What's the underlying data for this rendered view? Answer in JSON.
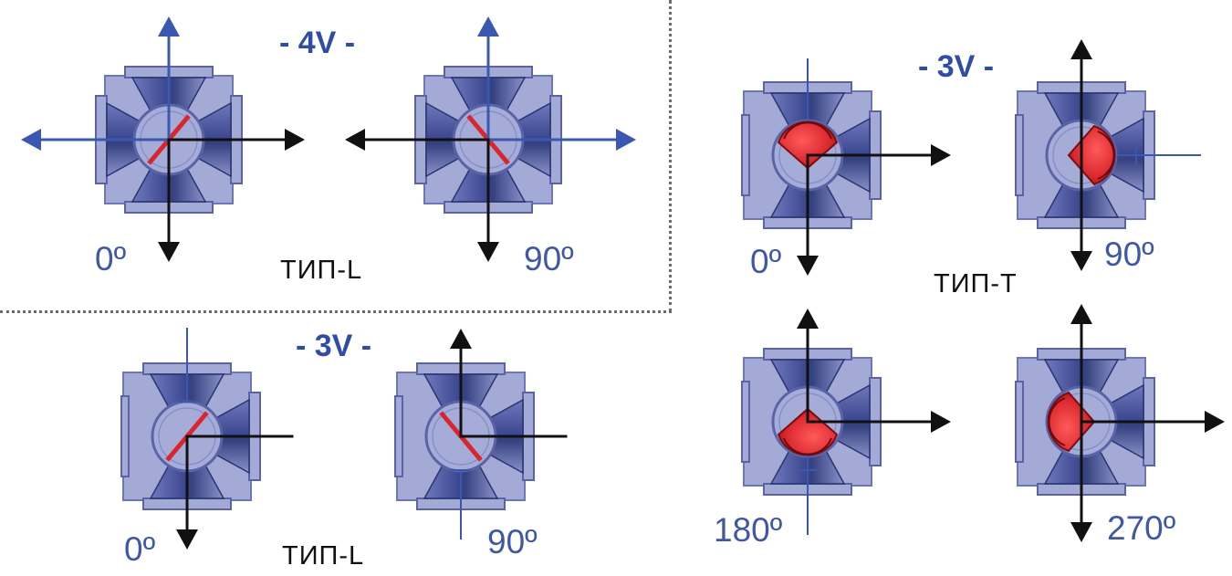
{
  "groups": {
    "four_way": {
      "title": "- 4V -",
      "type_label": "ТИП-L",
      "positions": [
        "0º",
        "90º"
      ]
    },
    "three_way_l": {
      "title": "- 3V -",
      "type_label": "ТИП-L",
      "positions": [
        "0º",
        "90º"
      ]
    },
    "three_way_t": {
      "title": "- 3V -",
      "type_label": "ТИП-T",
      "positions": [
        "0º",
        "90º",
        "180º",
        "270º"
      ]
    }
  },
  "colors": {
    "body_dark": "#3e4a92",
    "body_mid": "#5d68ad",
    "body_light": "#a3aad6",
    "ball": "#a5acd8",
    "seal": "#d9262d",
    "flow_arrow": "#111111",
    "flow_arrow_blue": "#3a58b0",
    "text_blue": "#3f57a6"
  }
}
